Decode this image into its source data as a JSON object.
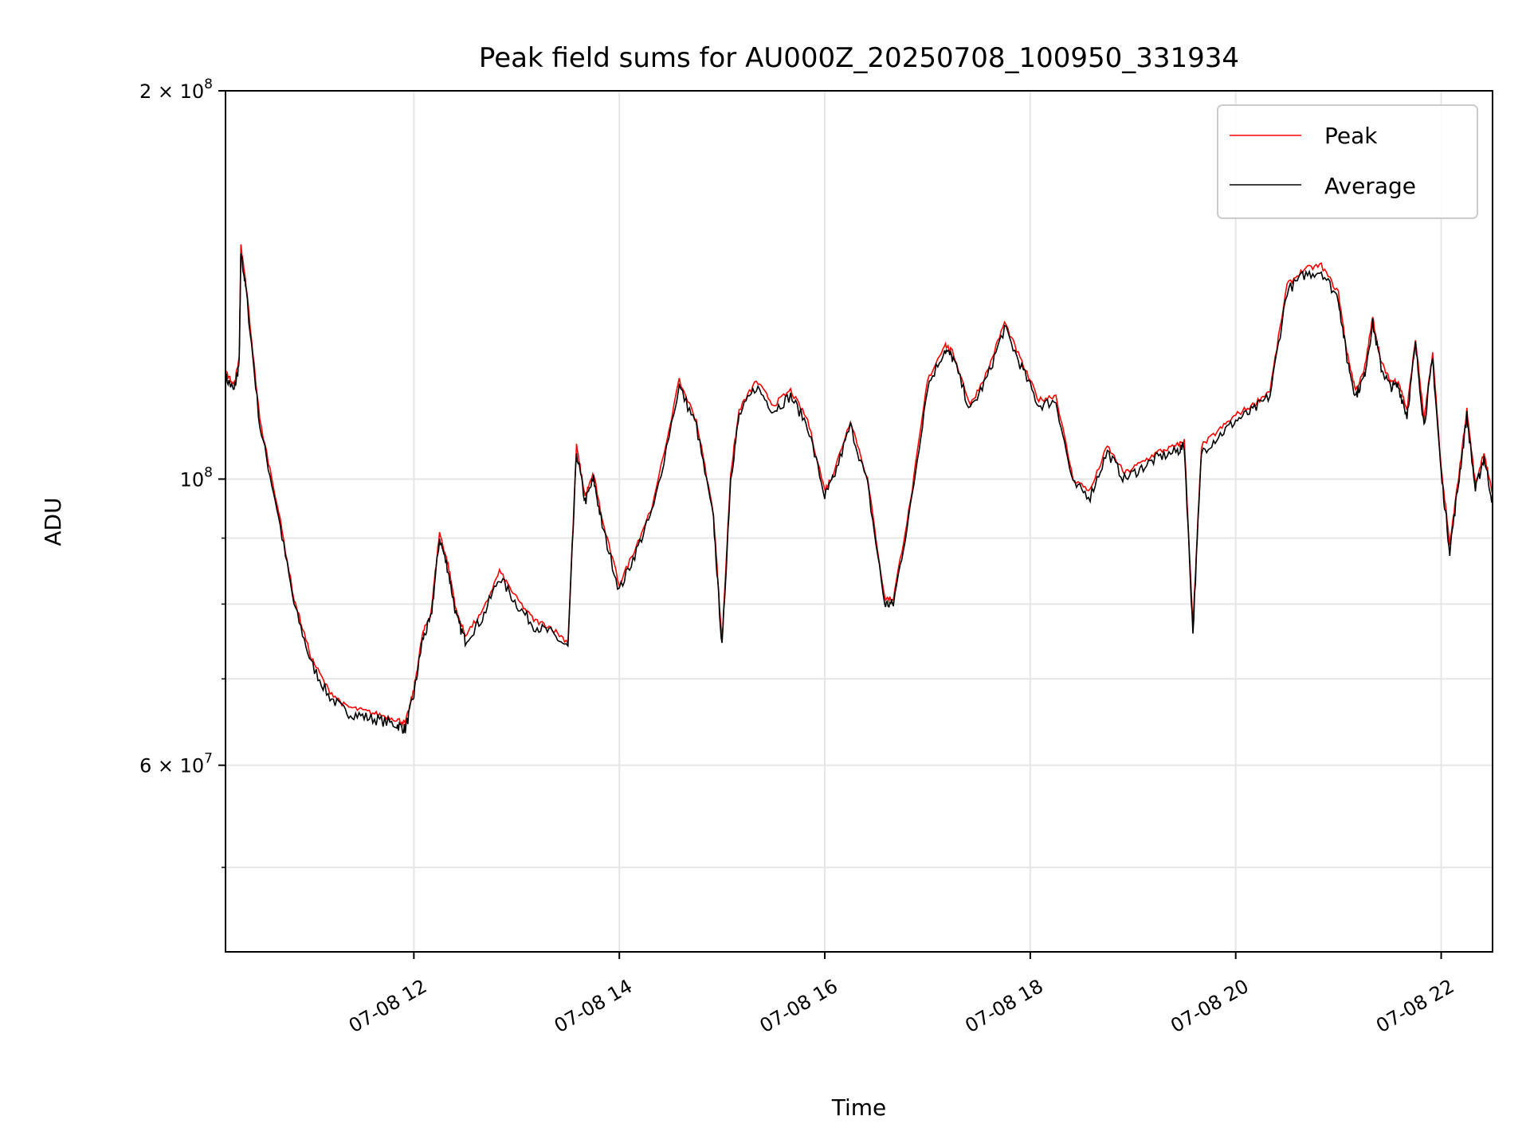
{
  "chart_data": {
    "type": "line",
    "title": "Peak field sums for AU000Z_20250708_100950_331934",
    "xlabel": "Time",
    "ylabel": "ADU",
    "x_scale": "time",
    "y_scale": "log",
    "xlim": [
      "2025-07-08 10:10",
      "2025-07-08 22:30"
    ],
    "ylim": [
      43000000,
      200000000
    ],
    "grid": true,
    "legend_position": "top-right",
    "x_ticks": [
      {
        "value": "2025-07-08 12:00",
        "label": "07-08 12"
      },
      {
        "value": "2025-07-08 14:00",
        "label": "07-08 14"
      },
      {
        "value": "2025-07-08 16:00",
        "label": "07-08 16"
      },
      {
        "value": "2025-07-08 18:00",
        "label": "07-08 18"
      },
      {
        "value": "2025-07-08 20:00",
        "label": "07-08 20"
      },
      {
        "value": "2025-07-08 22:00",
        "label": "07-08 22"
      }
    ],
    "y_ticks": [
      {
        "value": 200000000,
        "mant": "2",
        "base": "× 10",
        "exp": "8"
      },
      {
        "value": 100000000,
        "mant": "",
        "base": "10",
        "exp": "8"
      },
      {
        "value": 60000000,
        "mant": "6",
        "base": "× 10",
        "exp": "7"
      }
    ],
    "y_minor_ticks": [
      50000000,
      70000000,
      80000000,
      90000000
    ],
    "series": [
      {
        "name": "Peak",
        "color": "#ff0000",
        "points": [
          [
            "2025-07-08 10:10",
            120000000
          ],
          [
            "2025-07-08 10:15",
            117000000
          ],
          [
            "2025-07-08 10:18",
            123000000
          ],
          [
            "2025-07-08 10:19",
            150000000
          ],
          [
            "2025-07-08 10:22",
            140000000
          ],
          [
            "2025-07-08 10:30",
            110000000
          ],
          [
            "2025-07-08 10:40",
            95000000
          ],
          [
            "2025-07-08 10:50",
            80000000
          ],
          [
            "2025-07-08 11:00",
            72000000
          ],
          [
            "2025-07-08 11:10",
            68000000
          ],
          [
            "2025-07-08 11:20",
            66000000
          ],
          [
            "2025-07-08 11:30",
            65500000
          ],
          [
            "2025-07-08 11:40",
            65000000
          ],
          [
            "2025-07-08 11:50",
            64500000
          ],
          [
            "2025-07-08 11:55",
            64000000
          ],
          [
            "2025-07-08 12:00",
            68000000
          ],
          [
            "2025-07-08 12:05",
            75000000
          ],
          [
            "2025-07-08 12:10",
            78000000
          ],
          [
            "2025-07-08 12:15",
            90000000
          ],
          [
            "2025-07-08 12:20",
            85000000
          ],
          [
            "2025-07-08 12:25",
            78000000
          ],
          [
            "2025-07-08 12:30",
            75000000
          ],
          [
            "2025-07-08 12:40",
            78000000
          ],
          [
            "2025-07-08 12:50",
            84000000
          ],
          [
            "2025-07-08 13:00",
            80000000
          ],
          [
            "2025-07-08 13:10",
            77000000
          ],
          [
            "2025-07-08 13:20",
            76000000
          ],
          [
            "2025-07-08 13:30",
            74000000
          ],
          [
            "2025-07-08 13:35",
            105000000
          ],
          [
            "2025-07-08 13:40",
            96000000
          ],
          [
            "2025-07-08 13:45",
            100000000
          ],
          [
            "2025-07-08 13:50",
            92000000
          ],
          [
            "2025-07-08 14:00",
            82000000
          ],
          [
            "2025-07-08 14:10",
            88000000
          ],
          [
            "2025-07-08 14:20",
            95000000
          ],
          [
            "2025-07-08 14:35",
            118000000
          ],
          [
            "2025-07-08 14:45",
            110000000
          ],
          [
            "2025-07-08 14:55",
            93000000
          ],
          [
            "2025-07-08 15:00",
            74000000
          ],
          [
            "2025-07-08 15:05",
            100000000
          ],
          [
            "2025-07-08 15:10",
            112000000
          ],
          [
            "2025-07-08 15:20",
            118000000
          ],
          [
            "2025-07-08 15:30",
            113000000
          ],
          [
            "2025-07-08 15:40",
            116000000
          ],
          [
            "2025-07-08 15:50",
            110000000
          ],
          [
            "2025-07-08 16:00",
            97000000
          ],
          [
            "2025-07-08 16:05",
            100000000
          ],
          [
            "2025-07-08 16:15",
            110000000
          ],
          [
            "2025-07-08 16:25",
            99000000
          ],
          [
            "2025-07-08 16:35",
            80000000
          ],
          [
            "2025-07-08 16:40",
            80000000
          ],
          [
            "2025-07-08 16:50",
            95000000
          ],
          [
            "2025-07-08 17:00",
            118000000
          ],
          [
            "2025-07-08 17:10",
            126000000
          ],
          [
            "2025-07-08 17:15",
            124000000
          ],
          [
            "2025-07-08 17:25",
            113000000
          ],
          [
            "2025-07-08 17:35",
            120000000
          ],
          [
            "2025-07-08 17:45",
            131000000
          ],
          [
            "2025-07-08 17:55",
            122000000
          ],
          [
            "2025-07-08 18:05",
            114000000
          ],
          [
            "2025-07-08 18:15",
            115000000
          ],
          [
            "2025-07-08 18:25",
            99000000
          ],
          [
            "2025-07-08 18:35",
            97000000
          ],
          [
            "2025-07-08 18:45",
            105000000
          ],
          [
            "2025-07-08 18:55",
            100000000
          ],
          [
            "2025-07-08 19:05",
            102000000
          ],
          [
            "2025-07-08 19:15",
            104000000
          ],
          [
            "2025-07-08 19:25",
            105000000
          ],
          [
            "2025-07-08 19:30",
            106000000
          ],
          [
            "2025-07-08 19:35",
            76000000
          ],
          [
            "2025-07-08 19:40",
            105000000
          ],
          [
            "2025-07-08 19:50",
            108000000
          ],
          [
            "2025-07-08 20:00",
            111000000
          ],
          [
            "2025-07-08 20:10",
            113000000
          ],
          [
            "2025-07-08 20:20",
            116000000
          ],
          [
            "2025-07-08 20:30",
            140000000
          ],
          [
            "2025-07-08 20:40",
            144000000
          ],
          [
            "2025-07-08 20:50",
            145000000
          ],
          [
            "2025-07-08 21:00",
            138000000
          ],
          [
            "2025-07-08 21:05",
            124000000
          ],
          [
            "2025-07-08 21:10",
            116000000
          ],
          [
            "2025-07-08 21:15",
            120000000
          ],
          [
            "2025-07-08 21:20",
            132000000
          ],
          [
            "2025-07-08 21:25",
            122000000
          ],
          [
            "2025-07-08 21:30",
            118000000
          ],
          [
            "2025-07-08 21:35",
            118000000
          ],
          [
            "2025-07-08 21:40",
            112000000
          ],
          [
            "2025-07-08 21:45",
            127000000
          ],
          [
            "2025-07-08 21:50",
            110000000
          ],
          [
            "2025-07-08 21:55",
            124000000
          ],
          [
            "2025-07-08 22:00",
            101000000
          ],
          [
            "2025-07-08 22:05",
            88000000
          ],
          [
            "2025-07-08 22:10",
            99000000
          ],
          [
            "2025-07-08 22:15",
            112000000
          ],
          [
            "2025-07-08 22:20",
            98000000
          ],
          [
            "2025-07-08 22:25",
            104000000
          ],
          [
            "2025-07-08 22:30",
            96000000
          ]
        ]
      },
      {
        "name": "Average",
        "color": "#000000",
        "points": []
      }
    ]
  }
}
